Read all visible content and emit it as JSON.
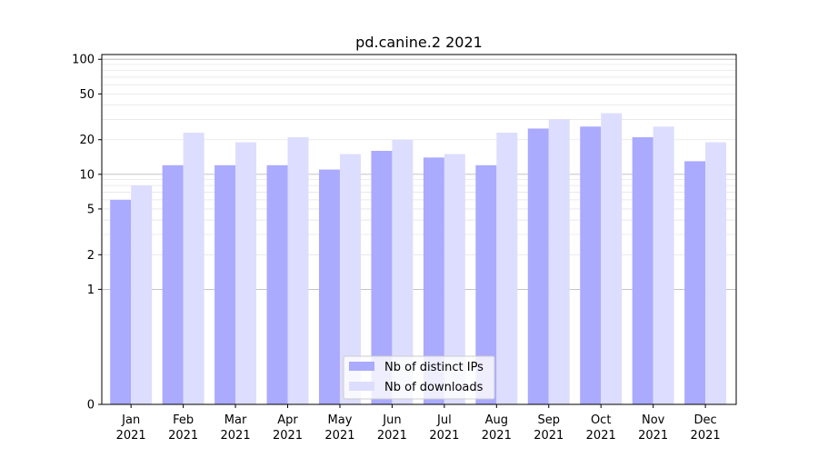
{
  "chart_data": {
    "type": "bar",
    "title": "pd.canine.2 2021",
    "xlabel": "",
    "ylabel": "",
    "y_scale": "symlog",
    "ylim": [
      0,
      110
    ],
    "y_ticks": [
      0,
      1,
      2,
      5,
      10,
      20,
      50,
      100
    ],
    "y_tick_labels": [
      "0",
      "1",
      "2",
      "5",
      "10",
      "20",
      "50",
      "100"
    ],
    "categories": [
      {
        "month": "Jan",
        "year": "2021"
      },
      {
        "month": "Feb",
        "year": "2021"
      },
      {
        "month": "Mar",
        "year": "2021"
      },
      {
        "month": "Apr",
        "year": "2021"
      },
      {
        "month": "May",
        "year": "2021"
      },
      {
        "month": "Jun",
        "year": "2021"
      },
      {
        "month": "Jul",
        "year": "2021"
      },
      {
        "month": "Aug",
        "year": "2021"
      },
      {
        "month": "Sep",
        "year": "2021"
      },
      {
        "month": "Oct",
        "year": "2021"
      },
      {
        "month": "Nov",
        "year": "2021"
      },
      {
        "month": "Dec",
        "year": "2021"
      }
    ],
    "series": [
      {
        "name": "Nb of distinct IPs",
        "color": "#aaaaff",
        "values": [
          6,
          12,
          12,
          12,
          11,
          16,
          14,
          12,
          25,
          26,
          21,
          13
        ]
      },
      {
        "name": "Nb of downloads",
        "color": "#ddddff",
        "values": [
          8,
          23,
          19,
          21,
          15,
          20,
          15,
          23,
          30,
          34,
          26,
          19
        ]
      }
    ],
    "legend": "lower-center",
    "grid": true
  }
}
